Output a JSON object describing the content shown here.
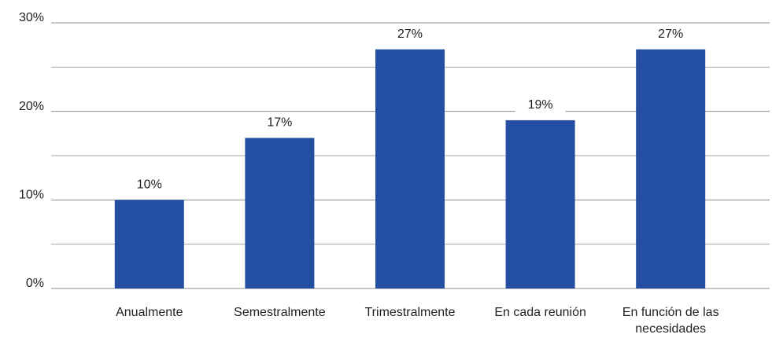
{
  "chart_data": {
    "type": "bar",
    "categories": [
      "Anualmente",
      "Semestralmente",
      "Trimestralmente",
      "En cada reunión",
      "En función de las necesidades"
    ],
    "values": [
      10,
      17,
      27,
      19,
      27
    ],
    "value_labels": [
      "10%",
      "17%",
      "27%",
      "19%",
      "27%"
    ],
    "color": "#234ea1",
    "ylim": [
      0,
      30
    ],
    "yticks": [
      {
        "value": 0,
        "label": "0%"
      },
      {
        "value": 10,
        "label": "10%"
      },
      {
        "value": 20,
        "label": "20%"
      },
      {
        "value": 30,
        "label": "30%"
      }
    ],
    "minor_yticks": [
      5,
      15,
      25
    ],
    "grid": true
  }
}
